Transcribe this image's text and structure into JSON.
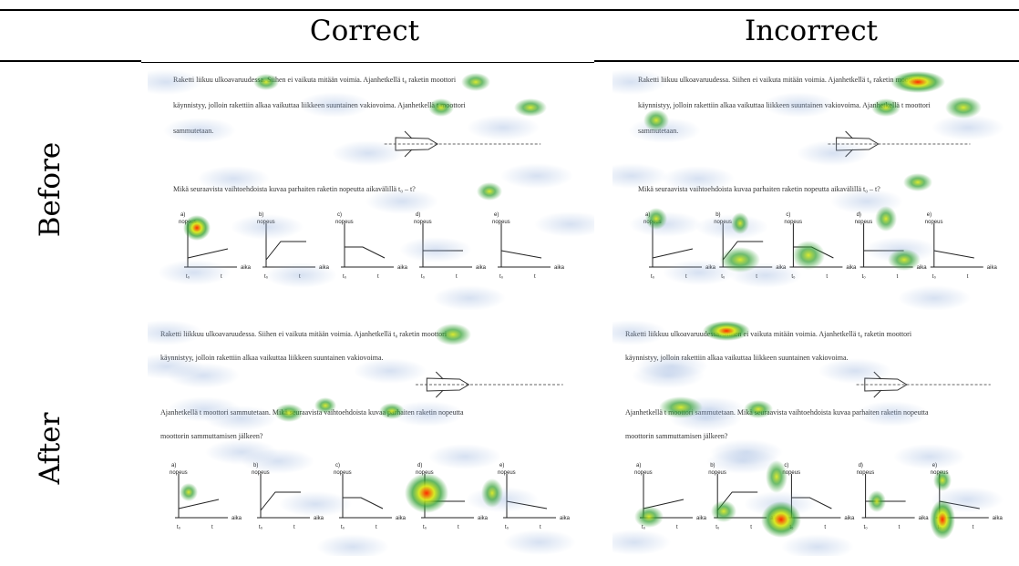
{
  "header": {
    "col_correct": "Correct",
    "col_incorrect": "Incorrect"
  },
  "rows": {
    "before": "Before",
    "after": "After"
  },
  "stimulus_before": {
    "line1": "Raketti liikuu ulkoavaruudessa. Siihen ei vaikuta mitään voimia. Ajanhetkellä",
    "t0": "t₀",
    "line1b": "raketin moottori",
    "line2": "käynnistyy, jolloin rakettiin alkaa vaikuttaa liikkeen suuntainen vakiovoima. Ajanhetkellä",
    "tA": "t",
    "line2b": "moottori",
    "line3": "sammutetaan.",
    "question": "Mikä seuraavista vaihtoehdoista kuvaa parhaiten raketin nopeutta aikavälillä",
    "q_interval": "t₀ – t",
    "q_end": "?"
  },
  "stimulus_after": {
    "line1": "Raketti liikkuu ulkoavaruudessa. Siihen ei vaikuta mitään voimia. Ajanhetkellä t₀ raketin moottori",
    "line2": "käynnistyy, jolloin rakettiin alkaa vaikuttaa liikkeen suuntainen vakiovoima.",
    "question1": "Ajanhetkellä t",
    "question1b": "moottori sammutetaan. Mikä seuraavista vaihtoehdoista kuvaa parhaiten raketin nopeutta",
    "question2": "moottorin sammuttamisen jälkeen?"
  },
  "options": [
    {
      "letter": "a)",
      "ylabel": "nopeus",
      "xlabel": "aika",
      "t0": "t₀",
      "t1": "t"
    },
    {
      "letter": "b)",
      "ylabel": "nopeus",
      "xlabel": "aika",
      "t0": "t₀",
      "t1": "t"
    },
    {
      "letter": "c)",
      "ylabel": "nopeus",
      "xlabel": "aika",
      "t0": "t₀",
      "t1": "t"
    },
    {
      "letter": "d)",
      "ylabel": "nopeus",
      "xlabel": "aika",
      "t0": "t₀",
      "t1": "t"
    },
    {
      "letter": "e)",
      "ylabel": "nopeus",
      "xlabel": "aika",
      "t0": "t₀",
      "t1": "t"
    }
  ],
  "heat_colors": {
    "low": "#2f9e2f",
    "mid": "#d8e81a",
    "high": "#ff2a00"
  }
}
